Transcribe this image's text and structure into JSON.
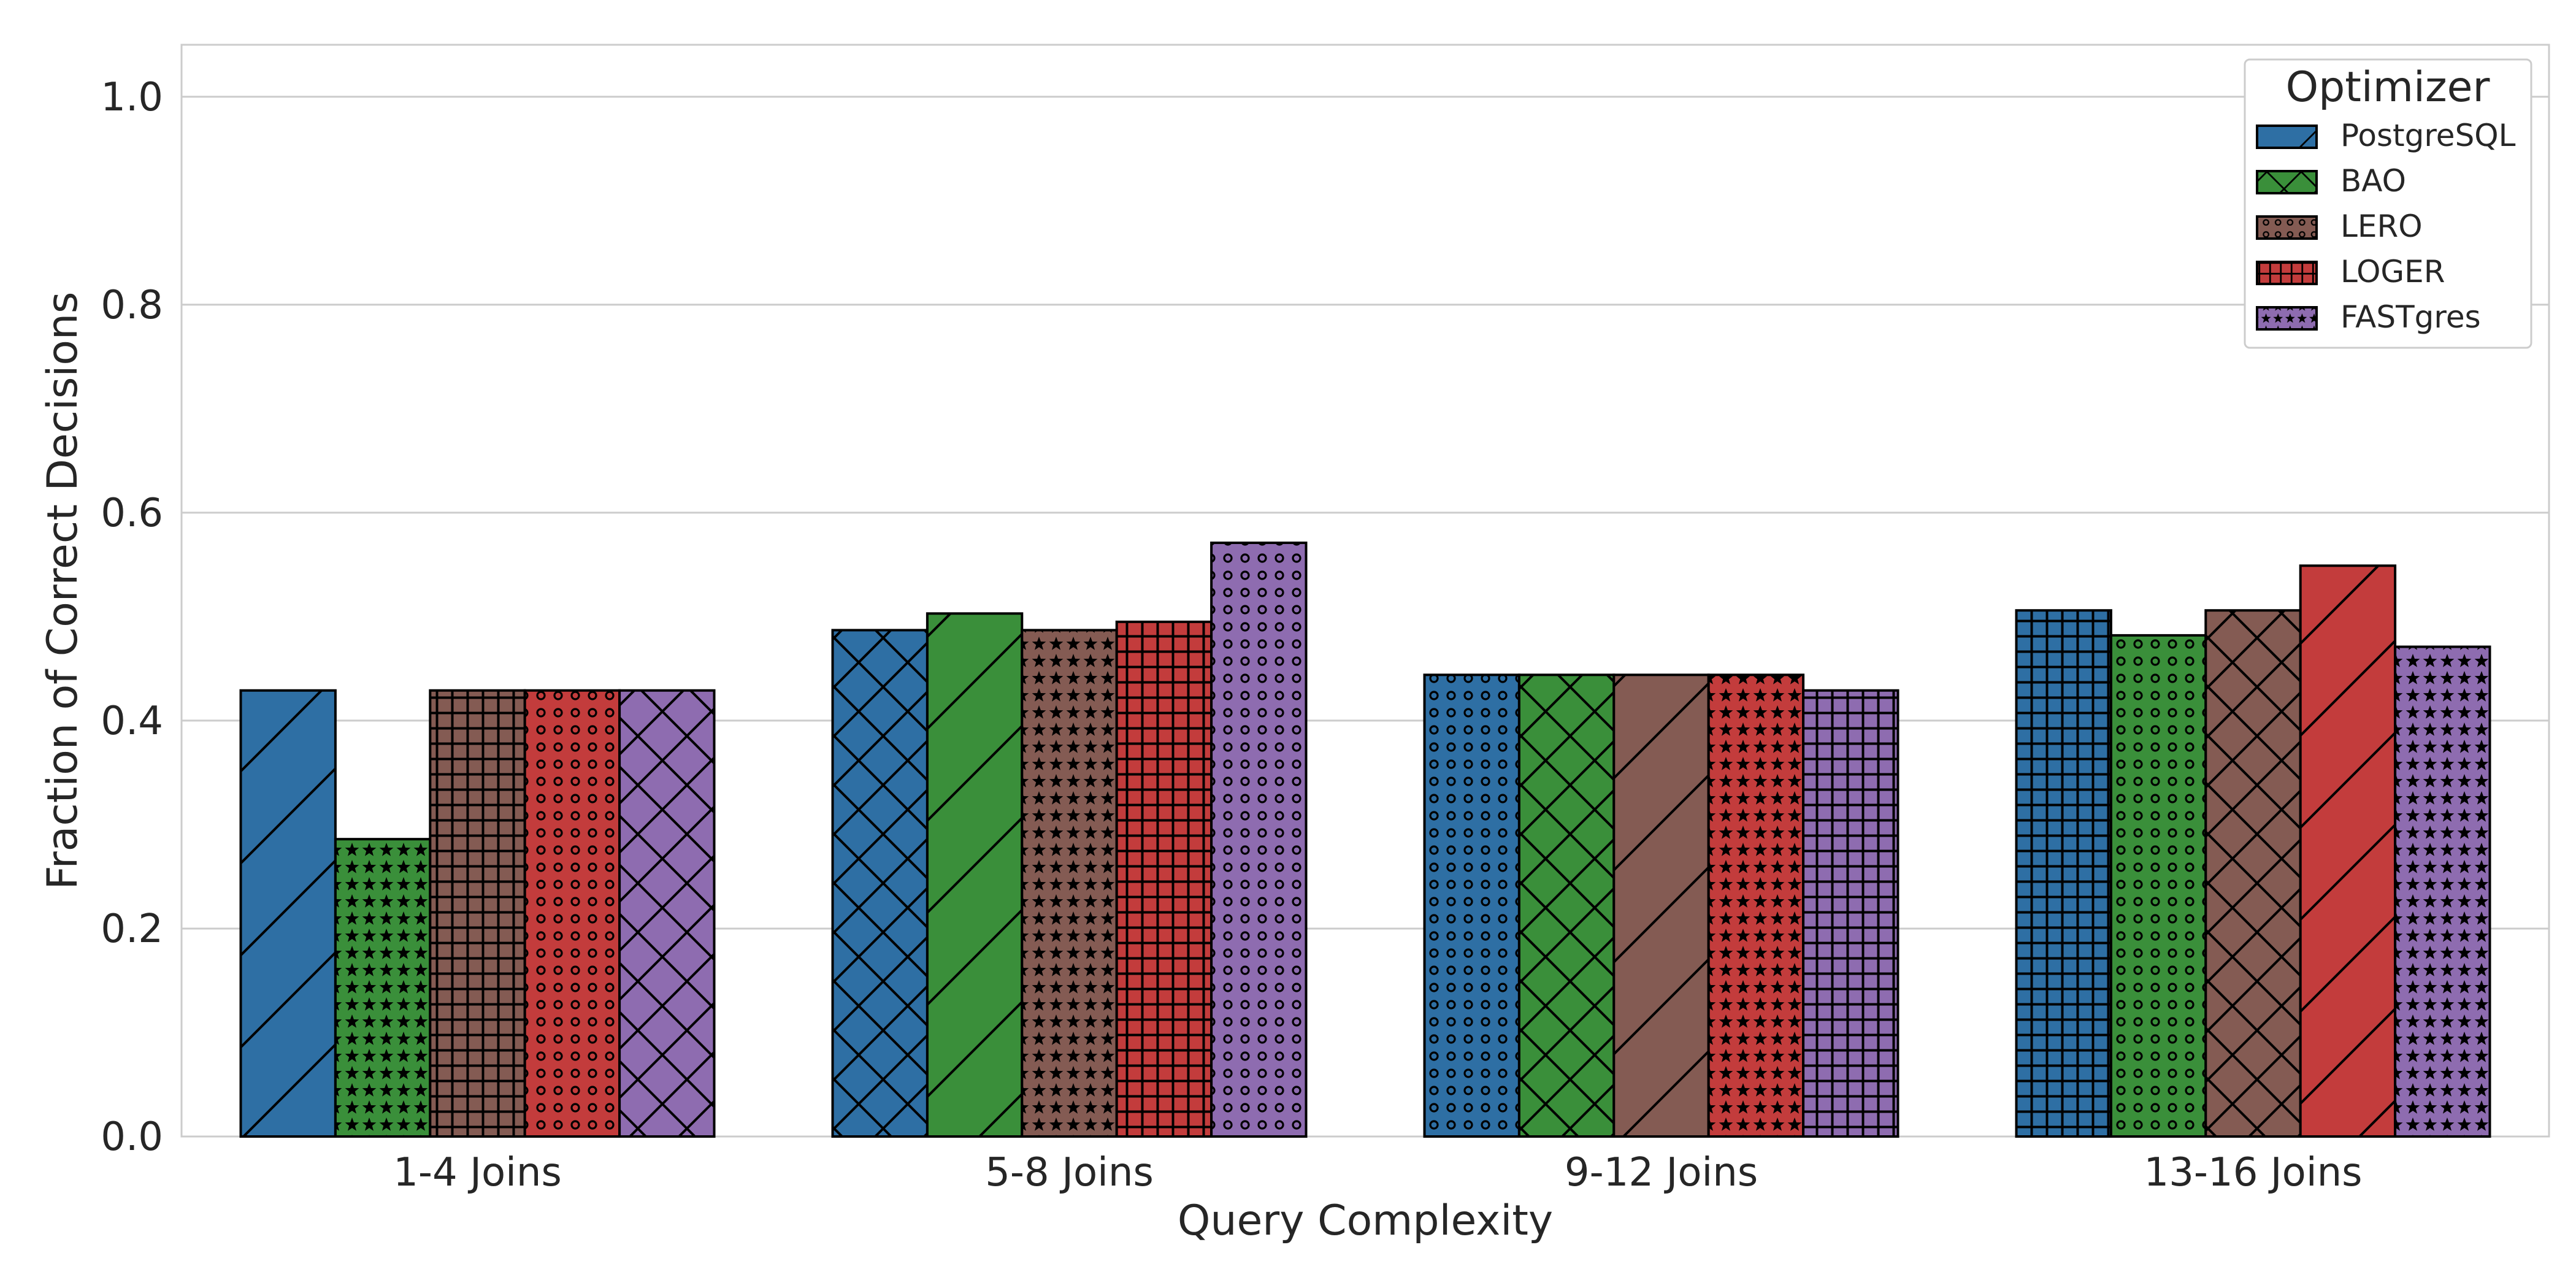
{
  "chart_data": {
    "type": "bar",
    "title": "",
    "xlabel": "Query Complexity",
    "ylabel": "Fraction of Correct Decisions",
    "ylim": [
      0,
      1.05
    ],
    "yticks": [
      "0.0",
      "0.2",
      "0.4",
      "0.6",
      "0.8",
      "1.0"
    ],
    "grid": "horizontal",
    "legend_title": "Optimizer",
    "legend_position": "top-right",
    "categories": [
      "1-4 Joins",
      "5-8 Joins",
      "9-12 Joins",
      "13-16 Joins"
    ],
    "series": [
      {
        "name": "PostgreSQL",
        "color": "#2e6fa4",
        "values": [
          0.429,
          0.487,
          0.444,
          0.506
        ]
      },
      {
        "name": "BAO",
        "color": "#3a8f3a",
        "values": [
          0.286,
          0.503,
          0.444,
          0.482
        ]
      },
      {
        "name": "LERO",
        "color": "#845b53",
        "values": [
          0.429,
          0.487,
          0.444,
          0.506
        ]
      },
      {
        "name": "LOGER",
        "color": "#c33c3c",
        "values": [
          0.429,
          0.495,
          0.444,
          0.549
        ]
      },
      {
        "name": "FASTgres",
        "color": "#8e6cb0",
        "values": [
          0.429,
          0.571,
          0.429,
          0.471
        ]
      }
    ],
    "bar_hatches": [
      [
        "diag",
        "star",
        "grid",
        "dots",
        "cross"
      ],
      [
        "cross",
        "diag",
        "star",
        "grid",
        "dots"
      ],
      [
        "dots",
        "cross",
        "diag",
        "star",
        "grid"
      ],
      [
        "grid",
        "dots",
        "cross",
        "diag",
        "star"
      ]
    ],
    "legend_hatches": [
      "diag",
      "cross",
      "dots",
      "grid",
      "star"
    ]
  }
}
